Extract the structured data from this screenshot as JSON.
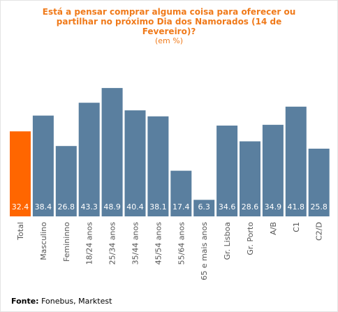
{
  "title_lines": [
    "Está a pensar comprar alguma coisa para oferecer ou",
    "partilhar no próximo Dia dos Namorados (14 de",
    "Fevereiro)?"
  ],
  "subtitle": "(em %)",
  "source": {
    "label": "Fonte:",
    "text": "Fonebus, Marktest"
  },
  "colors": {
    "highlight": "#ff6600",
    "bar": "#5a7f9f",
    "title": "#f07a1a"
  },
  "chart_data": {
    "type": "bar",
    "categories": [
      "Total",
      "Masculino",
      "Femininno",
      "18/24 anos",
      "25/34 anos",
      "35/44 anos",
      "45/54 anos",
      "55/64 anos",
      "65 e mais anos",
      "Gr. Lisboa",
      "Gr. Porto",
      "A/B",
      "C1",
      "C2/D"
    ],
    "values": [
      32.4,
      38.4,
      26.8,
      43.3,
      48.9,
      40.4,
      38.1,
      17.4,
      6.3,
      34.6,
      28.6,
      34.9,
      41.8,
      25.8
    ],
    "value_labels": [
      "32.4",
      "38.4",
      "26.8",
      "43.3",
      "48.9",
      "40.4",
      "38.1",
      "17.4",
      "6.3",
      "34.6",
      "28.6",
      "34.9",
      "41.8",
      "25.8"
    ],
    "highlight_index": 0,
    "ylim": [
      0,
      50
    ],
    "grid": false,
    "legend": "none"
  }
}
